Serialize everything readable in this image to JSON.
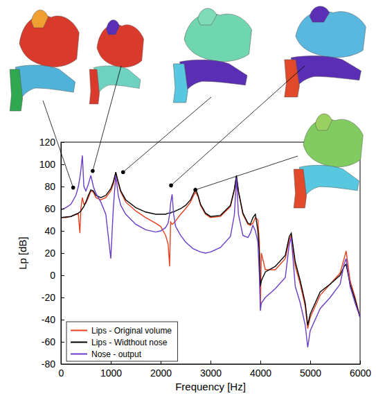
{
  "chart_data": {
    "type": "line",
    "x_label": "Frequency [Hz]",
    "y_label": "Lp [dB]",
    "xlim": [
      0,
      6000
    ],
    "ylim": [
      -80,
      120
    ],
    "xticks": [
      0,
      1000,
      2000,
      3000,
      4000,
      5000,
      6000
    ],
    "yticks": [
      -80,
      -60,
      -40,
      -20,
      0,
      20,
      40,
      60,
      80,
      100,
      120
    ],
    "grid": false,
    "legend": "lower left",
    "x": [
      0,
      100,
      200,
      300,
      350,
      380,
      400,
      430,
      460,
      500,
      550,
      600,
      650,
      700,
      800,
      900,
      1000,
      1050,
      1100,
      1150,
      1200,
      1300,
      1500,
      1700,
      1900,
      2000,
      2100,
      2150,
      2180,
      2200,
      2230,
      2260,
      2300,
      2400,
      2500,
      2600,
      2650,
      2700,
      2750,
      2800,
      2900,
      3000,
      3200,
      3400,
      3480,
      3520,
      3560,
      3650,
      3750,
      3800,
      3850,
      3900,
      3950,
      3980,
      4000,
      4020,
      4100,
      4300,
      4500,
      4580,
      4620,
      4700,
      4800,
      4900,
      4950,
      5000,
      5200,
      5400,
      5600,
      5680,
      5720,
      5800,
      5900,
      6000
    ],
    "series": [
      {
        "name": "Lips - Original volume",
        "color": "#e8401e",
        "values": [
          52,
          52,
          53,
          55,
          55,
          38,
          60,
          70,
          64,
          65,
          70,
          76,
          75,
          70,
          68,
          70,
          76,
          82,
          92,
          83,
          75,
          66,
          58,
          52,
          47,
          44,
          36,
          28,
          8,
          48,
          46,
          47,
          49,
          55,
          60,
          66,
          71,
          75,
          71,
          63,
          55,
          52,
          53,
          62,
          77,
          89,
          75,
          55,
          46,
          45,
          47,
          52,
          50,
          30,
          -30,
          20,
          5,
          5,
          15,
          32,
          36,
          8,
          -8,
          -28,
          -48,
          -38,
          -18,
          -8,
          2,
          15,
          22,
          -5,
          -20,
          -38
        ]
      },
      {
        "name": "Lips - Widthout nose",
        "color": "#000000",
        "values": [
          52,
          52.5,
          53,
          55,
          56,
          57,
          58,
          60,
          62,
          66,
          72,
          77,
          76,
          72,
          70,
          72,
          78,
          84,
          93,
          84,
          76,
          68,
          61,
          57,
          55,
          55,
          55,
          56,
          56,
          56,
          57,
          57,
          58,
          60,
          63,
          68,
          73,
          78,
          72,
          64,
          56,
          53,
          54,
          63,
          78,
          90,
          76,
          56,
          47,
          46,
          52,
          55,
          40,
          20,
          -10,
          -5,
          3,
          8,
          18,
          35,
          38,
          12,
          -5,
          -25,
          -45,
          -35,
          -15,
          -8,
          0,
          8,
          10,
          -8,
          -22,
          -38
        ]
      },
      {
        "name": "Nose - output",
        "color": "#6a3cc8",
        "values": [
          59,
          61,
          64,
          72,
          80,
          88,
          95,
          108,
          80,
          76,
          82,
          90,
          80,
          74,
          66,
          55,
          15,
          60,
          90,
          72,
          63,
          55,
          46,
          41,
          39,
          40,
          43,
          47,
          55,
          65,
          73,
          55,
          44,
          36,
          30,
          26,
          24,
          23,
          22,
          21,
          20,
          21,
          25,
          35,
          55,
          88,
          55,
          36,
          34,
          38,
          45,
          40,
          30,
          0,
          -32,
          -25,
          -20,
          -12,
          -2,
          28,
          34,
          -10,
          -25,
          -45,
          -65,
          -50,
          -30,
          -20,
          -8,
          10,
          15,
          -10,
          -25,
          -38
        ]
      }
    ],
    "annotations": [
      {
        "x": 245,
        "y": 79
      },
      {
        "x": 637,
        "y": 94
      },
      {
        "x": 1247,
        "y": 93
      },
      {
        "x": 2209,
        "y": 81
      },
      {
        "x": 2696,
        "y": 77
      }
    ]
  }
}
